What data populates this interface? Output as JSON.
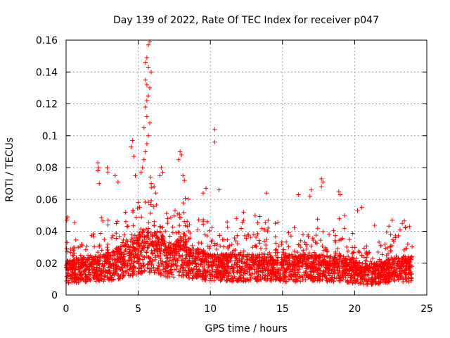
{
  "chart_data": {
    "type": "scatter",
    "title": "Day 139 of 2022, Rate Of TEC Index for receiver p047",
    "xlabel": "GPS time / hours",
    "ylabel": "ROTI / TECUs",
    "xlim": [
      0,
      25
    ],
    "ylim": [
      0,
      0.16
    ],
    "xticks": [
      0,
      5,
      10,
      15,
      20,
      25
    ],
    "xtick_labels": [
      "0",
      "5",
      "10",
      "15",
      "20",
      "25"
    ],
    "yticks": [
      0,
      0.02,
      0.04,
      0.06,
      0.08,
      0.1,
      0.12,
      0.14,
      0.16
    ],
    "ytick_labels": [
      "0",
      "0.02",
      "0.04",
      "0.06",
      "0.08",
      "0.1",
      "0.12",
      "0.14",
      "0.16"
    ],
    "grid": true,
    "marker": "+",
    "color": "#ff0000",
    "series": [
      {
        "name": "ROTI",
        "x_range_hours": [
          0,
          24
        ],
        "baseline_profile": [
          {
            "x": 0,
            "y": 0.016
          },
          {
            "x": 1,
            "y": 0.017
          },
          {
            "x": 2,
            "y": 0.018
          },
          {
            "x": 3,
            "y": 0.02
          },
          {
            "x": 4,
            "y": 0.024
          },
          {
            "x": 5,
            "y": 0.028
          },
          {
            "x": 5.5,
            "y": 0.032
          },
          {
            "x": 6,
            "y": 0.03
          },
          {
            "x": 7,
            "y": 0.024
          },
          {
            "x": 8,
            "y": 0.026
          },
          {
            "x": 9,
            "y": 0.022
          },
          {
            "x": 10,
            "y": 0.02
          },
          {
            "x": 11,
            "y": 0.019
          },
          {
            "x": 12,
            "y": 0.019
          },
          {
            "x": 13,
            "y": 0.019
          },
          {
            "x": 14,
            "y": 0.02
          },
          {
            "x": 15,
            "y": 0.018
          },
          {
            "x": 16,
            "y": 0.019
          },
          {
            "x": 17,
            "y": 0.019
          },
          {
            "x": 18,
            "y": 0.018
          },
          {
            "x": 19,
            "y": 0.019
          },
          {
            "x": 20,
            "y": 0.016
          },
          {
            "x": 21,
            "y": 0.014
          },
          {
            "x": 22,
            "y": 0.016
          },
          {
            "x": 23,
            "y": 0.018
          },
          {
            "x": 24,
            "y": 0.018
          }
        ],
        "notable_points": [
          {
            "x": 5.8,
            "y": 0.159
          },
          {
            "x": 5.7,
            "y": 0.157
          },
          {
            "x": 5.6,
            "y": 0.149
          },
          {
            "x": 5.5,
            "y": 0.146
          },
          {
            "x": 5.7,
            "y": 0.143
          },
          {
            "x": 5.9,
            "y": 0.14
          },
          {
            "x": 5.5,
            "y": 0.135
          },
          {
            "x": 5.6,
            "y": 0.132
          },
          {
            "x": 5.8,
            "y": 0.13
          },
          {
            "x": 5.7,
            "y": 0.125
          },
          {
            "x": 5.6,
            "y": 0.122
          },
          {
            "x": 5.5,
            "y": 0.118
          },
          {
            "x": 5.6,
            "y": 0.112
          },
          {
            "x": 5.8,
            "y": 0.108
          },
          {
            "x": 5.4,
            "y": 0.105
          },
          {
            "x": 5.7,
            "y": 0.1
          },
          {
            "x": 5.6,
            "y": 0.095
          },
          {
            "x": 4.6,
            "y": 0.097
          },
          {
            "x": 4.5,
            "y": 0.093
          },
          {
            "x": 5.5,
            "y": 0.09
          },
          {
            "x": 4.7,
            "y": 0.087
          },
          {
            "x": 5.4,
            "y": 0.085
          },
          {
            "x": 5.3,
            "y": 0.08
          },
          {
            "x": 5.2,
            "y": 0.077
          },
          {
            "x": 4.8,
            "y": 0.075
          },
          {
            "x": 5.9,
            "y": 0.07
          },
          {
            "x": 6.1,
            "y": 0.068
          },
          {
            "x": 10.3,
            "y": 0.104
          },
          {
            "x": 10.3,
            "y": 0.096
          },
          {
            "x": 2.2,
            "y": 0.083
          },
          {
            "x": 2.25,
            "y": 0.08
          },
          {
            "x": 2.2,
            "y": 0.078
          },
          {
            "x": 2.85,
            "y": 0.08
          },
          {
            "x": 2.9,
            "y": 0.077
          },
          {
            "x": 3.4,
            "y": 0.075
          },
          {
            "x": 3.6,
            "y": 0.071
          },
          {
            "x": 2.3,
            "y": 0.07
          },
          {
            "x": 7.9,
            "y": 0.09
          },
          {
            "x": 8.0,
            "y": 0.088
          },
          {
            "x": 7.8,
            "y": 0.085
          },
          {
            "x": 6.6,
            "y": 0.08
          },
          {
            "x": 6.7,
            "y": 0.077
          },
          {
            "x": 6.5,
            "y": 0.075
          },
          {
            "x": 8.1,
            "y": 0.075
          },
          {
            "x": 8.2,
            "y": 0.072
          },
          {
            "x": 9.7,
            "y": 0.067
          },
          {
            "x": 10.6,
            "y": 0.066
          },
          {
            "x": 9.5,
            "y": 0.064
          },
          {
            "x": 13.9,
            "y": 0.064
          },
          {
            "x": 16.1,
            "y": 0.063
          },
          {
            "x": 16.9,
            "y": 0.062
          },
          {
            "x": 17.7,
            "y": 0.073
          },
          {
            "x": 17.8,
            "y": 0.071
          },
          {
            "x": 17.7,
            "y": 0.068
          },
          {
            "x": 17.0,
            "y": 0.066
          },
          {
            "x": 18.9,
            "y": 0.065
          },
          {
            "x": 19.0,
            "y": 0.063
          },
          {
            "x": 20.5,
            "y": 0.055
          },
          {
            "x": 20.2,
            "y": 0.053
          },
          {
            "x": 19.3,
            "y": 0.05
          },
          {
            "x": 22.6,
            "y": 0.047
          },
          {
            "x": 23.3,
            "y": 0.045
          },
          {
            "x": 23.8,
            "y": 0.043
          },
          {
            "x": 0.1,
            "y": 0.049
          },
          {
            "x": 0.05,
            "y": 0.047
          },
          {
            "x": 12.3,
            "y": 0.052
          },
          {
            "x": 13.1,
            "y": 0.05
          },
          {
            "x": 11.8,
            "y": 0.048
          },
          {
            "x": 14.5,
            "y": 0.045
          }
        ]
      }
    ]
  }
}
